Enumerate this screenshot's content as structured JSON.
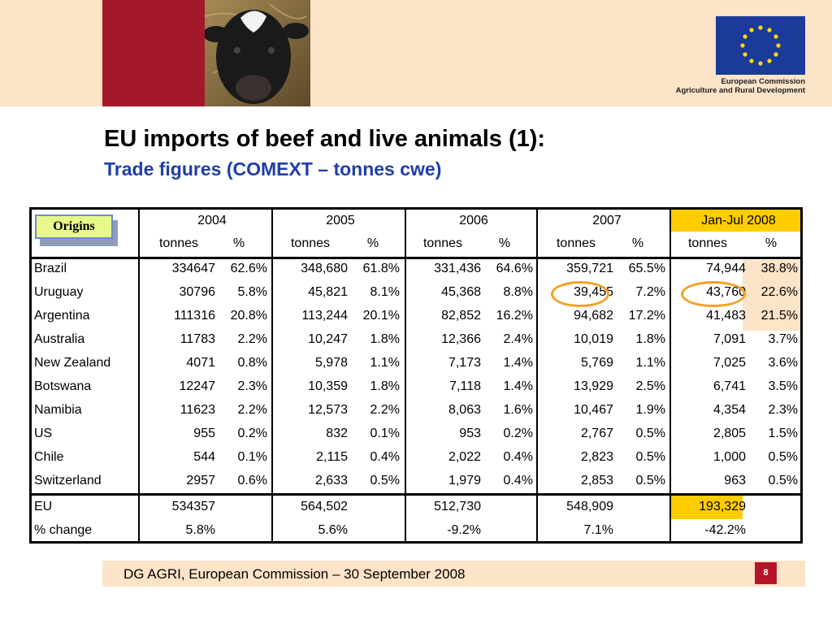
{
  "header": {
    "org_line1": "European Commission",
    "org_line2": "Agriculture and Rural Development"
  },
  "title": "EU imports of beef and live animals (1):",
  "subtitle": "Trade figures (COMEXT – tonnes cwe)",
  "table": {
    "origins_label": "Origins",
    "years": [
      "2004",
      "2005",
      "2006",
      "2007",
      "Jan-Jul 2008"
    ],
    "unit_labels": [
      "tonnes",
      "%"
    ],
    "rows": [
      {
        "country": "Brazil",
        "v": [
          "334647",
          "62.6%",
          "348,680",
          "61.8%",
          "331,436",
          "64.6%",
          "359,721",
          "65.5%",
          "74,944",
          "38.8%"
        ]
      },
      {
        "country": "Uruguay",
        "v": [
          "30796",
          "5.8%",
          "45,821",
          "8.1%",
          "45,368",
          "8.8%",
          "39,455",
          "7.2%",
          "43,760",
          "22.6%"
        ]
      },
      {
        "country": "Argentina",
        "v": [
          "111316",
          "20.8%",
          "113,244",
          "20.1%",
          "82,852",
          "16.2%",
          "94,682",
          "17.2%",
          "41,483",
          "21.5%"
        ]
      },
      {
        "country": "Australia",
        "v": [
          "11783",
          "2.2%",
          "10,247",
          "1.8%",
          "12,366",
          "2.4%",
          "10,019",
          "1.8%",
          "7,091",
          "3.7%"
        ]
      },
      {
        "country": "New Zealand",
        "v": [
          "4071",
          "0.8%",
          "5,978",
          "1.1%",
          "7,173",
          "1.4%",
          "5,769",
          "1.1%",
          "7,025",
          "3.6%"
        ]
      },
      {
        "country": "Botswana",
        "v": [
          "12247",
          "2.3%",
          "10,359",
          "1.8%",
          "7,118",
          "1.4%",
          "13,929",
          "2.5%",
          "6,741",
          "3.5%"
        ]
      },
      {
        "country": "Namibia",
        "v": [
          "11623",
          "2.2%",
          "12,573",
          "2.2%",
          "8,063",
          "1.6%",
          "10,467",
          "1.9%",
          "4,354",
          "2.3%"
        ]
      },
      {
        "country": "US",
        "v": [
          "955",
          "0.2%",
          "832",
          "0.1%",
          "953",
          "0.2%",
          "2,767",
          "0.5%",
          "2,805",
          "1.5%"
        ]
      },
      {
        "country": "Chile",
        "v": [
          "544",
          "0.1%",
          "2,115",
          "0.4%",
          "2,022",
          "0.4%",
          "2,823",
          "0.5%",
          "1,000",
          "0.5%"
        ]
      },
      {
        "country": "Switzerland",
        "v": [
          "2957",
          "0.6%",
          "2,633",
          "0.5%",
          "1,979",
          "0.4%",
          "2,853",
          "0.5%",
          "963",
          "0.5%"
        ]
      }
    ],
    "totals": [
      {
        "label": "EU",
        "v": [
          "534357",
          "564,502",
          "512,730",
          "548,909",
          "193,329"
        ]
      },
      {
        "label": "% change",
        "v": [
          "5.8%",
          "5.6%",
          "-9.2%",
          "7.1%",
          "-42.2%"
        ]
      }
    ]
  },
  "colors": {
    "highlight_yellow": "#ffcc00",
    "highlight_peach": "#fde3c8",
    "circle": "#f4a023",
    "accent_red": "#a4182c",
    "subtitle_blue": "#1f3fa8"
  },
  "footer": {
    "text": "DG AGRI, European Commission – 30 September 2008",
    "page": "8"
  }
}
